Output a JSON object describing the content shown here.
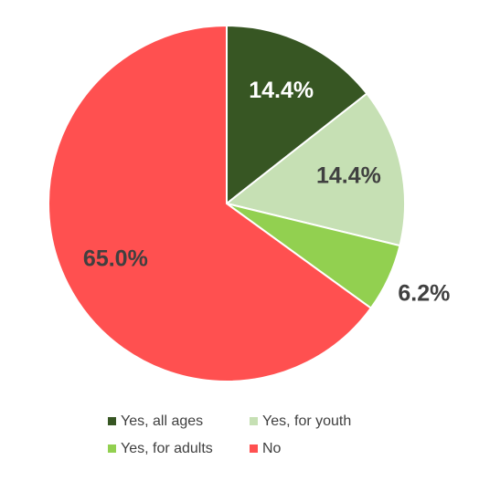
{
  "chart_data": {
    "type": "pie",
    "categories": [
      "Yes, all ages",
      "Yes, for youth",
      "Yes, for adults",
      "No"
    ],
    "values": [
      14.4,
      14.4,
      6.2,
      65.0
    ],
    "value_labels": [
      "14.4%",
      "14.4%",
      "6.2%",
      "65.0%"
    ],
    "colors": [
      "#375623",
      "#c6e0b4",
      "#92d050",
      "#ff5050"
    ]
  }
}
